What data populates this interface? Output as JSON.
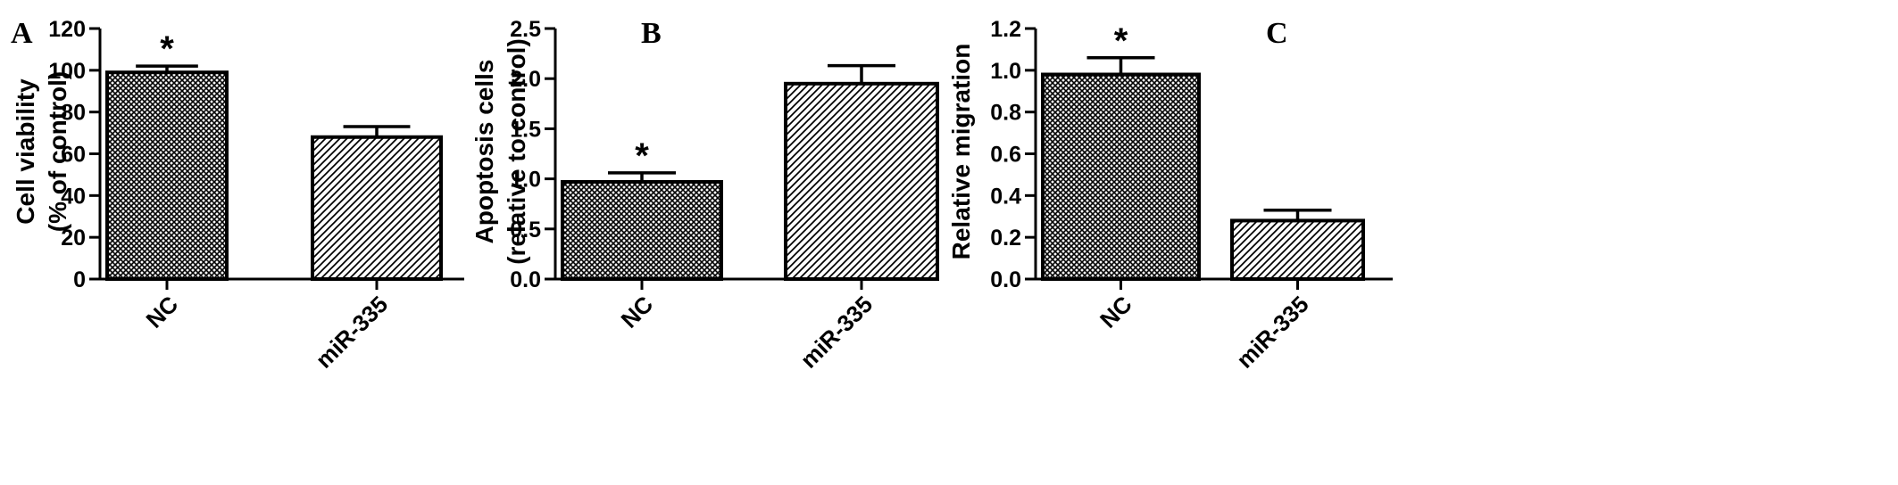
{
  "colors": {
    "ink": "#000000",
    "background": "#ffffff"
  },
  "chart_data": [
    {
      "panel": "A",
      "type": "bar",
      "categories": [
        "NC",
        "miR-335"
      ],
      "values": [
        99,
        68
      ],
      "errors": [
        3,
        5
      ],
      "significance": [
        "*",
        ""
      ],
      "fill_patterns": [
        "crosshatch",
        "diagonal-lines"
      ],
      "ylabel": [
        "Cell viability",
        "(% of control)"
      ],
      "ylim": [
        0,
        120
      ],
      "yticks": [
        "0",
        "20",
        "40",
        "60",
        "80",
        "100",
        "120"
      ],
      "grid": false
    },
    {
      "panel": "B",
      "type": "bar",
      "categories": [
        "NC",
        "miR-335"
      ],
      "values": [
        0.97,
        1.95
      ],
      "errors": [
        0.09,
        0.18
      ],
      "significance": [
        "*",
        ""
      ],
      "fill_patterns": [
        "crosshatch",
        "diagonal-lines"
      ],
      "ylabel": [
        "Apoptosis cells",
        "(relative to control)"
      ],
      "ylim": [
        0,
        2.5
      ],
      "yticks": [
        "0.0",
        "0.5",
        "1.0",
        "1.5",
        "2.0",
        "2.5"
      ],
      "grid": false
    },
    {
      "panel": "C",
      "type": "bar",
      "categories": [
        "NC",
        "miR-335"
      ],
      "values": [
        0.98,
        0.28
      ],
      "errors": [
        0.08,
        0.05
      ],
      "significance": [
        "*",
        ""
      ],
      "fill_patterns": [
        "crosshatch",
        "diagonal-lines"
      ],
      "ylabel": [
        "Relative migration"
      ],
      "ylim": [
        0,
        1.2
      ],
      "yticks": [
        "0.0",
        "0.2",
        "0.4",
        "0.6",
        "0.8",
        "1.0",
        "1.2"
      ],
      "grid": false
    }
  ]
}
